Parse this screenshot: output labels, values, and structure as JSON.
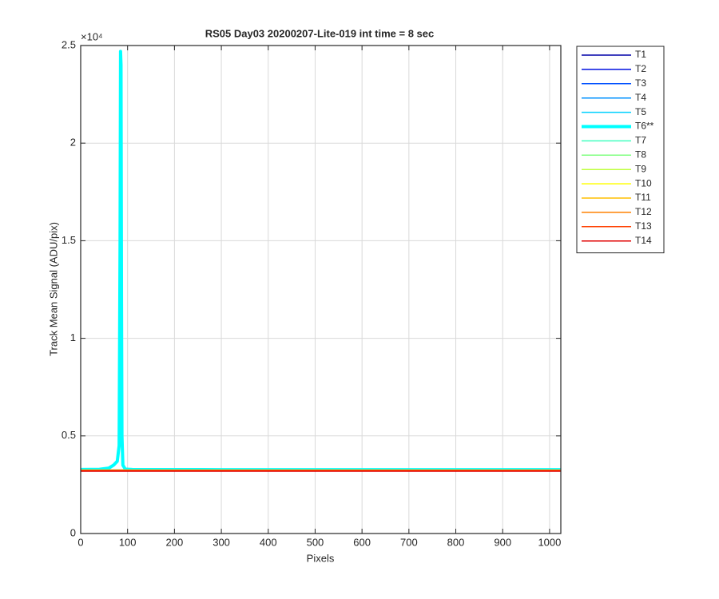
{
  "chart_data": {
    "type": "line",
    "title": "RS05 Day03 20200207-Lite-019 int time = 8 sec",
    "x_label": "Pixels",
    "y_label": "Track Mean Signal (ADU/pix)",
    "y_multiplier": "×10⁴",
    "xlim": [
      0,
      1024
    ],
    "xticks": [
      0,
      100,
      200,
      300,
      400,
      500,
      600,
      700,
      800,
      900,
      1000
    ],
    "ylim": [
      0,
      25000
    ],
    "yticks": [
      0,
      {
        "value": 5000,
        "label": "0.5"
      },
      {
        "value": 10000,
        "label": "1"
      },
      {
        "value": 15000,
        "label": "1.5"
      },
      {
        "value": 20000,
        "label": "2"
      },
      {
        "value": 25000,
        "label": "2.5"
      }
    ],
    "grid": true,
    "legend": "outside-right",
    "x": [
      0,
      40,
      60,
      70,
      78,
      82,
      84,
      85,
      86,
      87,
      88,
      90,
      95,
      110,
      300,
      500,
      700,
      900,
      1024
    ],
    "series": [
      {
        "name": "T1",
        "color": "#0000a8",
        "line_width": 1.5,
        "values": [
          3250,
          3250,
          3250,
          3250,
          3250,
          3250,
          3250,
          3250,
          3250,
          3250,
          3250,
          3250,
          3250,
          3250,
          3250,
          3250,
          3250,
          3250,
          3250
        ]
      },
      {
        "name": "T2",
        "color": "#0010e0",
        "line_width": 1.5,
        "values": [
          3250,
          3250,
          3250,
          3250,
          3250,
          3250,
          3250,
          3250,
          3250,
          3250,
          3250,
          3250,
          3250,
          3250,
          3250,
          3250,
          3250,
          3250,
          3250
        ]
      },
      {
        "name": "T3",
        "color": "#0050ff",
        "line_width": 1.5,
        "values": [
          3250,
          3250,
          3250,
          3250,
          3250,
          3250,
          3250,
          3250,
          3250,
          3250,
          3250,
          3250,
          3250,
          3250,
          3250,
          3250,
          3250,
          3250,
          3250
        ]
      },
      {
        "name": "T4",
        "color": "#0090ff",
        "line_width": 1.5,
        "values": [
          3250,
          3250,
          3250,
          3250,
          3250,
          3250,
          3250,
          3250,
          3250,
          3250,
          3250,
          3250,
          3250,
          3250,
          3250,
          3250,
          3250,
          3250,
          3250
        ]
      },
      {
        "name": "T5",
        "color": "#00d0ff",
        "line_width": 1.5,
        "values": [
          3260,
          3260,
          3260,
          3260,
          3260,
          3260,
          3260,
          3260,
          3260,
          3260,
          3260,
          3260,
          3260,
          3260,
          3260,
          3260,
          3260,
          3260,
          3260
        ]
      },
      {
        "name": "T6**",
        "color": "#00ffff",
        "line_width": 4,
        "values": [
          3280,
          3290,
          3350,
          3500,
          3700,
          4500,
          15000,
          24700,
          24000,
          12000,
          5000,
          3500,
          3300,
          3280,
          3270,
          3270,
          3270,
          3270,
          3270
        ]
      },
      {
        "name": "T7",
        "color": "#40ffbf",
        "line_width": 1.5,
        "values": [
          3250,
          3250,
          3250,
          3250,
          3250,
          3250,
          3250,
          3250,
          3250,
          3250,
          3250,
          3250,
          3250,
          3250,
          3250,
          3250,
          3250,
          3250,
          3250
        ]
      },
      {
        "name": "T8",
        "color": "#80ff80",
        "line_width": 1.5,
        "values": [
          3250,
          3250,
          3250,
          3250,
          3250,
          3250,
          3250,
          3250,
          3250,
          3250,
          3250,
          3250,
          3250,
          3250,
          3250,
          3250,
          3250,
          3250,
          3250
        ]
      },
      {
        "name": "T9",
        "color": "#bfff40",
        "line_width": 1.5,
        "values": [
          3250,
          3250,
          3250,
          3250,
          3250,
          3250,
          3250,
          3250,
          3250,
          3250,
          3250,
          3250,
          3250,
          3250,
          3250,
          3250,
          3250,
          3250,
          3250
        ]
      },
      {
        "name": "T10",
        "color": "#ffff00",
        "line_width": 1.5,
        "values": [
          3250,
          3250,
          3250,
          3250,
          3250,
          3250,
          3250,
          3250,
          3250,
          3250,
          3250,
          3250,
          3250,
          3250,
          3250,
          3250,
          3250,
          3250,
          3250
        ]
      },
      {
        "name": "T11",
        "color": "#ffbf00",
        "line_width": 1.5,
        "values": [
          3250,
          3250,
          3250,
          3250,
          3250,
          3250,
          3250,
          3250,
          3250,
          3250,
          3250,
          3250,
          3250,
          3250,
          3250,
          3250,
          3250,
          3250,
          3250
        ]
      },
      {
        "name": "T12",
        "color": "#ff8000",
        "line_width": 1.5,
        "values": [
          3240,
          3240,
          3240,
          3240,
          3240,
          3240,
          3240,
          3240,
          3240,
          3240,
          3240,
          3240,
          3240,
          3240,
          3240,
          3240,
          3240,
          3240,
          3240
        ]
      },
      {
        "name": "T13",
        "color": "#ff4000",
        "line_width": 1.5,
        "values": [
          3220,
          3220,
          3220,
          3220,
          3220,
          3220,
          3220,
          3220,
          3220,
          3220,
          3220,
          3220,
          3220,
          3220,
          3220,
          3220,
          3220,
          3220,
          3220
        ]
      },
      {
        "name": "T14",
        "color": "#e00000",
        "line_width": 1.5,
        "values": [
          3190,
          3190,
          3190,
          3190,
          3190,
          3190,
          3190,
          3190,
          3190,
          3190,
          3190,
          3190,
          3190,
          3190,
          3190,
          3190,
          3190,
          3190,
          3190
        ]
      }
    ]
  }
}
